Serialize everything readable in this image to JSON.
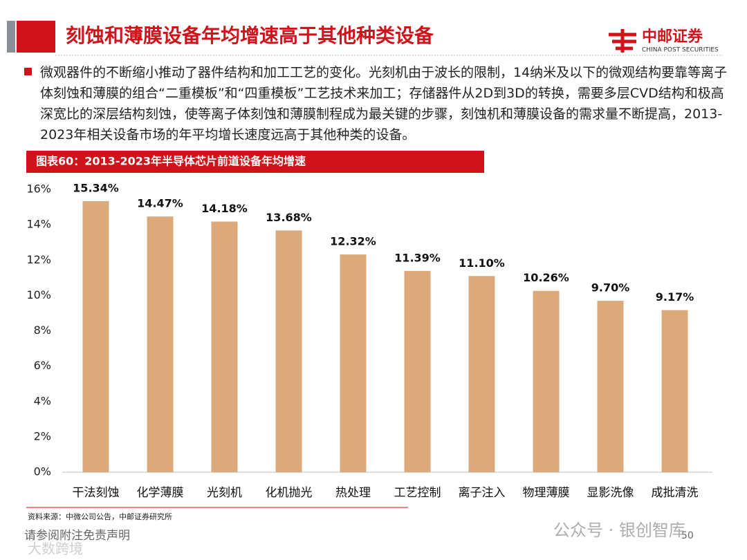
{
  "header": {
    "title": "刻蚀和薄膜设备年均增速高于其他种类设备",
    "logo_cn": "中邮证券",
    "logo_en": "CHINA POST SECURITIES"
  },
  "bullet": "微观器件的不断缩小推动了器件结构和加工工艺的变化。光刻机由于波长的限制，14纳米及以下的微观结构要靠等离子体刻蚀和薄膜的组合“二重模板”和“四重模板”工艺技术来加工；存储器件从2D到3D的转换，需要多层CVD结构和极高深宽比的深层结构刻蚀，使等离子体刻蚀和薄膜制程成为最关键的步骤，刻蚀机和薄膜设备的需求量不断提高，2013-2023年相关设备市场的年平均增长速度远高于其他种类的设备。",
  "chart_data": {
    "type": "bar",
    "title": "图表60：2013-2023年半导体芯片前道设备年均增速",
    "categories": [
      "干法刻蚀",
      "化学薄膜",
      "光刻机",
      "化机抛光",
      "热处理",
      "工艺控制",
      "离子注入",
      "物理薄膜",
      "显影洗像",
      "成批清洗"
    ],
    "values": [
      15.34,
      14.47,
      14.18,
      13.68,
      12.32,
      11.39,
      11.1,
      10.26,
      9.7,
      9.17
    ],
    "value_labels": [
      "15.34%",
      "14.47%",
      "14.18%",
      "13.68%",
      "12.32%",
      "11.39%",
      "11.10%",
      "10.26%",
      "9.70%",
      "9.17%"
    ],
    "color": "#dcaa7a",
    "ylim": [
      0,
      16
    ],
    "yticks": [
      {
        "value": 0,
        "label": "0%"
      },
      {
        "value": 2,
        "label": "2%"
      },
      {
        "value": 4,
        "label": "4%"
      },
      {
        "value": 6,
        "label": "6%"
      },
      {
        "value": 8,
        "label": "8%"
      },
      {
        "value": 10,
        "label": "10%"
      },
      {
        "value": 12,
        "label": "12%"
      },
      {
        "value": 14,
        "label": "14%"
      },
      {
        "value": 16,
        "label": "16%"
      }
    ],
    "grid": false
  },
  "source": "资料来源：中微公司公告，中邮证券研究所",
  "footer": {
    "disclaimer": "请参阅附注免责声明",
    "page": "50"
  },
  "watermarks": [
    "公众号 · 银创智库",
    "大数跨境"
  ]
}
